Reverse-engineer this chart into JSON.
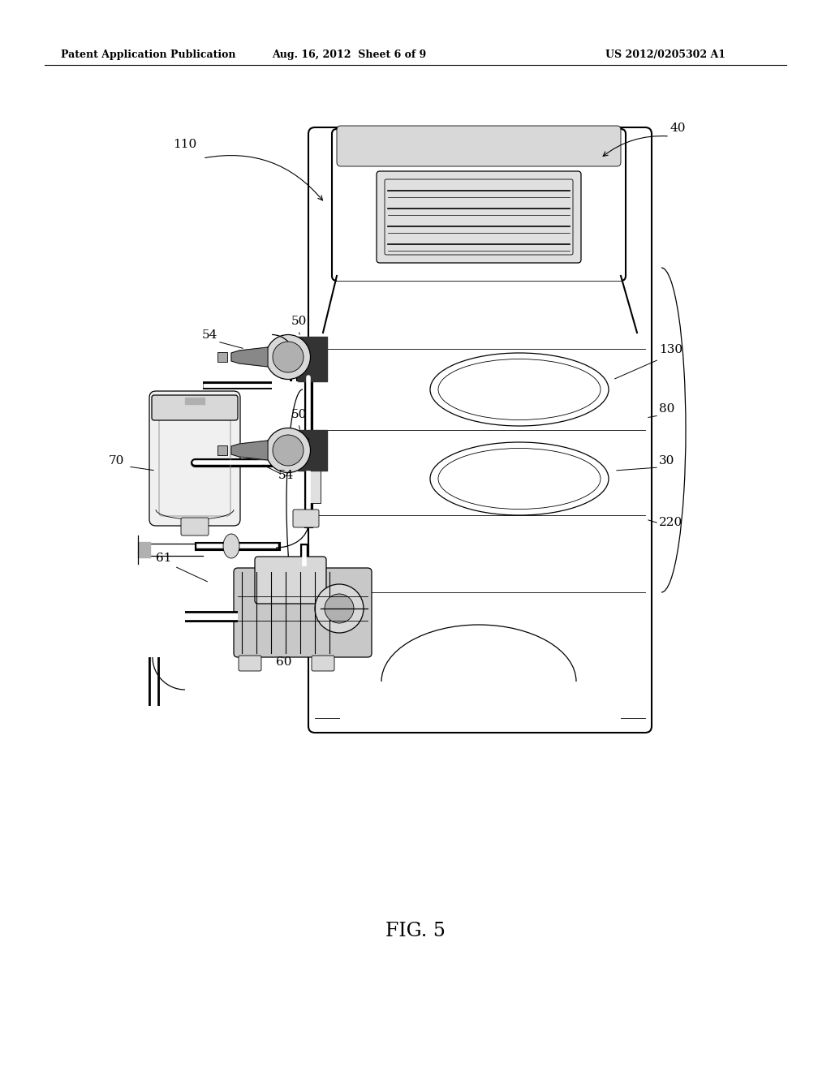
{
  "bg_color": "#ffffff",
  "header_left": "Patent Application Publication",
  "header_center": "Aug. 16, 2012  Sheet 6 of 9",
  "header_right": "US 2012/0205302 A1",
  "figure_label": "FIG. 5",
  "lw_body": 1.5,
  "lw_detail": 0.9,
  "lw_thin": 0.6,
  "lw_thick": 2.5,
  "label_fontsize": 11
}
